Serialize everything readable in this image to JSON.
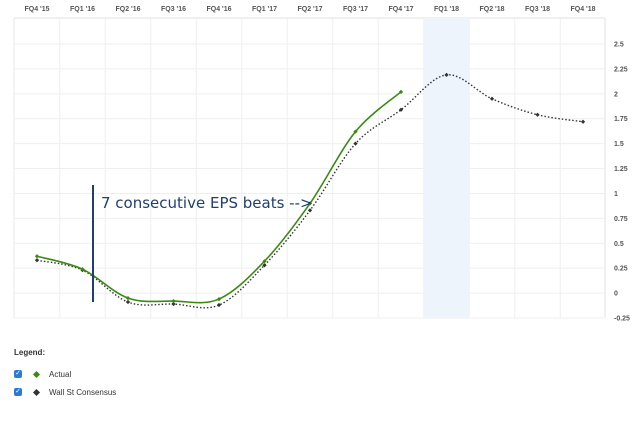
{
  "chart_data": {
    "type": "line",
    "categories": [
      "FQ4 '15",
      "FQ1 '16",
      "FQ2 '16",
      "FQ3 '16",
      "FQ4 '16",
      "FQ1 '17",
      "FQ2 '17",
      "FQ3 '17",
      "FQ4 '17",
      "FQ1 '18",
      "FQ2 '18",
      "FQ3 '18",
      "FQ4 '18"
    ],
    "series": [
      {
        "name": "Actual",
        "color": "#3a8a12",
        "style": "solid",
        "values": [
          0.37,
          0.24,
          -0.05,
          -0.08,
          -0.06,
          0.32,
          0.9,
          1.62,
          2.02,
          null,
          null,
          null,
          null
        ]
      },
      {
        "name": "Wall St Consensus",
        "color": "#333333",
        "style": "dotted",
        "values": [
          0.33,
          0.23,
          -0.09,
          -0.11,
          -0.12,
          0.28,
          0.83,
          1.5,
          1.84,
          2.19,
          1.95,
          1.79,
          1.72
        ]
      }
    ],
    "y_ticks": [
      "-0.25",
      "0",
      "0.25",
      "0.5",
      "0.75",
      "1",
      "1.25",
      "1.5",
      "1.75",
      "2",
      "2.25",
      "2.5"
    ],
    "ylim": [
      -0.25,
      2.5
    ],
    "grid": true,
    "highlight_category": "FQ1 '18",
    "annotation": "7 consecutive EPS beats -->",
    "legend_title": "Legend:",
    "legend_position": "bottom-left"
  }
}
